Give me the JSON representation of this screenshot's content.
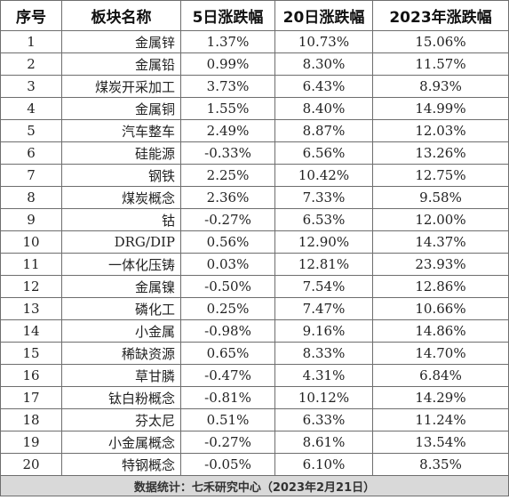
{
  "headers": {
    "rank": "序号",
    "name": "板块名称",
    "d5": "5日涨跌幅",
    "d20": "20日涨跌幅",
    "y2023": "2023年涨跌幅"
  },
  "rows": [
    {
      "rank": "1",
      "name": "金属锌",
      "d5": "1.37%",
      "d20": "10.73%",
      "y2023": "15.06%"
    },
    {
      "rank": "2",
      "name": "金属铅",
      "d5": "0.99%",
      "d20": "8.30%",
      "y2023": "11.57%"
    },
    {
      "rank": "3",
      "name": "煤炭开采加工",
      "d5": "3.73%",
      "d20": "6.43%",
      "y2023": "8.93%"
    },
    {
      "rank": "4",
      "name": "金属铜",
      "d5": "1.55%",
      "d20": "8.40%",
      "y2023": "14.99%"
    },
    {
      "rank": "5",
      "name": "汽车整车",
      "d5": "2.49%",
      "d20": "8.87%",
      "y2023": "12.03%"
    },
    {
      "rank": "6",
      "name": "硅能源",
      "d5": "-0.33%",
      "d20": "6.56%",
      "y2023": "13.26%"
    },
    {
      "rank": "7",
      "name": "钢铁",
      "d5": "2.25%",
      "d20": "10.42%",
      "y2023": "12.75%"
    },
    {
      "rank": "8",
      "name": "煤炭概念",
      "d5": "2.36%",
      "d20": "7.33%",
      "y2023": "9.58%"
    },
    {
      "rank": "9",
      "name": "钴",
      "d5": "-0.27%",
      "d20": "6.53%",
      "y2023": "12.00%"
    },
    {
      "rank": "10",
      "name": "DRG/DIP",
      "d5": "0.56%",
      "d20": "12.90%",
      "y2023": "14.37%"
    },
    {
      "rank": "11",
      "name": "一体化压铸",
      "d5": "0.03%",
      "d20": "12.81%",
      "y2023": "23.93%"
    },
    {
      "rank": "12",
      "name": "金属镍",
      "d5": "-0.50%",
      "d20": "7.54%",
      "y2023": "12.86%"
    },
    {
      "rank": "13",
      "name": "磷化工",
      "d5": "0.25%",
      "d20": "7.47%",
      "y2023": "10.66%"
    },
    {
      "rank": "14",
      "name": "小金属",
      "d5": "-0.98%",
      "d20": "9.16%",
      "y2023": "14.86%"
    },
    {
      "rank": "15",
      "name": "稀缺资源",
      "d5": "0.65%",
      "d20": "8.33%",
      "y2023": "14.70%"
    },
    {
      "rank": "16",
      "name": "草甘膦",
      "d5": "-0.47%",
      "d20": "4.31%",
      "y2023": "6.84%"
    },
    {
      "rank": "17",
      "name": "钛白粉概念",
      "d5": "-0.81%",
      "d20": "10.12%",
      "y2023": "14.29%"
    },
    {
      "rank": "18",
      "name": "芬太尼",
      "d5": "0.51%",
      "d20": "6.33%",
      "y2023": "11.24%"
    },
    {
      "rank": "19",
      "name": "小金属概念",
      "d5": "-0.27%",
      "d20": "8.61%",
      "y2023": "13.54%"
    },
    {
      "rank": "20",
      "name": "特钢概念",
      "d5": "-0.05%",
      "d20": "6.10%",
      "y2023": "8.35%"
    }
  ],
  "footer": "数据统计：七禾研究中心（2023年2月21日）",
  "colors": {
    "border": "#6e6e6e",
    "footer_background": "#d9d9d9"
  }
}
